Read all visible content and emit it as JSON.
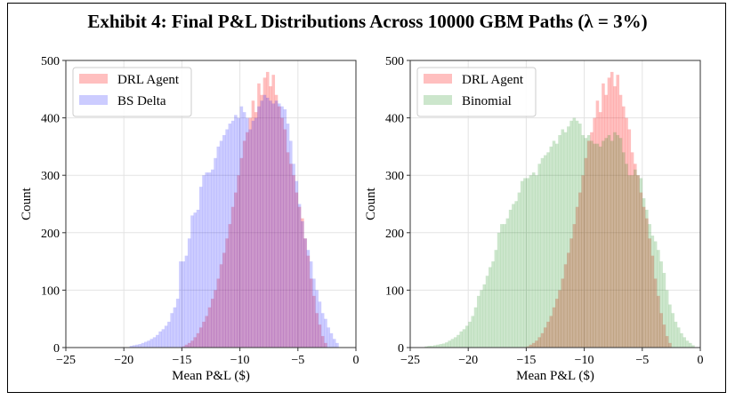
{
  "title": "Exhibit 4:  Final P&L Distributions Across 10000 GBM Paths (λ = 3%)",
  "chart_data": [
    {
      "type": "histogram",
      "xlabel": "Mean P&L ($)",
      "ylabel": "Count",
      "xlim": [
        -25,
        0
      ],
      "ylim": [
        0,
        500
      ],
      "xticks": [
        "−25",
        "−20",
        "−15",
        "−10",
        "−5",
        "0"
      ],
      "yticks": [
        "0",
        "100",
        "200",
        "300",
        "400",
        "500"
      ],
      "grid": true,
      "legend": "top-left",
      "series": [
        {
          "name": "DRL Agent",
          "color": "#ff0000",
          "alpha": 0.25,
          "bin_start": -15,
          "bin_width": 0.25,
          "counts": [
            2,
            5,
            8,
            12,
            18,
            25,
            35,
            45,
            55,
            70,
            85,
            100,
            120,
            145,
            165,
            190,
            215,
            245,
            270,
            300,
            330,
            360,
            375,
            400,
            430,
            410,
            460,
            440,
            470,
            480,
            455,
            475,
            440,
            420,
            400,
            380,
            340,
            320,
            300,
            270,
            245,
            225,
            190,
            160,
            120,
            90,
            60,
            40,
            20,
            8
          ]
        },
        {
          "name": "BS Delta",
          "color": "#0000ff",
          "alpha": 0.2,
          "bin_start": -19.5,
          "bin_width": 0.25,
          "counts": [
            3,
            4,
            5,
            6,
            8,
            10,
            12,
            15,
            18,
            22,
            28,
            32,
            38,
            45,
            60,
            70,
            85,
            150,
            150,
            160,
            190,
            230,
            235,
            240,
            280,
            300,
            305,
            305,
            310,
            330,
            350,
            360,
            370,
            380,
            390,
            395,
            405,
            400,
            420,
            410,
            400,
            380,
            395,
            400,
            420,
            430,
            440,
            435,
            430,
            425,
            430,
            425,
            420,
            415,
            390,
            360,
            320,
            290,
            250,
            220,
            190,
            170,
            150,
            120,
            100,
            80,
            60,
            50,
            35,
            25,
            15,
            8
          ]
        }
      ]
    },
    {
      "type": "histogram",
      "xlabel": "Mean P&L ($)",
      "ylabel": "Count",
      "xlim": [
        -25,
        0
      ],
      "ylim": [
        0,
        500
      ],
      "xticks": [
        "−25",
        "−20",
        "−15",
        "−10",
        "−5",
        "0"
      ],
      "yticks": [
        "0",
        "100",
        "200",
        "300",
        "400",
        "500"
      ],
      "grid": true,
      "legend": "top-left",
      "series": [
        {
          "name": "DRL Agent",
          "color": "#ff0000",
          "alpha": 0.25,
          "bin_start": -15,
          "bin_width": 0.25,
          "counts": [
            2,
            5,
            8,
            12,
            18,
            25,
            35,
            45,
            55,
            70,
            85,
            100,
            120,
            145,
            165,
            190,
            215,
            245,
            270,
            300,
            330,
            360,
            375,
            400,
            430,
            410,
            460,
            440,
            470,
            480,
            455,
            475,
            440,
            420,
            400,
            380,
            340,
            320,
            300,
            270,
            245,
            225,
            190,
            160,
            120,
            90,
            60,
            40,
            20,
            8
          ]
        },
        {
          "name": "Binomial",
          "color": "#008000",
          "alpha": 0.2,
          "bin_start": -23.75,
          "bin_width": 0.25,
          "counts": [
            2,
            3,
            3,
            4,
            5,
            6,
            7,
            9,
            12,
            15,
            18,
            22,
            28,
            32,
            38,
            45,
            55,
            70,
            90,
            100,
            110,
            125,
            140,
            150,
            170,
            200,
            215,
            215,
            225,
            240,
            250,
            255,
            270,
            290,
            295,
            295,
            300,
            305,
            300,
            320,
            330,
            335,
            340,
            350,
            360,
            355,
            370,
            380,
            375,
            385,
            395,
            400,
            395,
            390,
            370,
            365,
            370,
            360,
            355,
            355,
            350,
            360,
            365,
            370,
            360,
            375,
            370,
            365,
            340,
            320,
            300,
            300,
            310,
            300,
            295,
            260,
            240,
            215,
            195,
            185,
            170,
            150,
            130,
            100,
            75,
            60,
            45,
            35,
            25,
            18,
            12,
            8,
            4
          ]
        }
      ]
    }
  ]
}
